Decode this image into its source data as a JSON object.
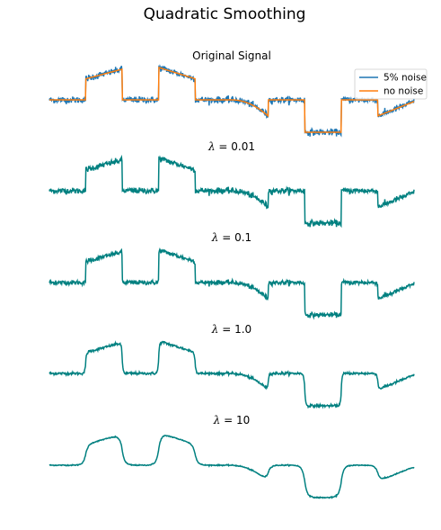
{
  "figure": {
    "title": "Quadratic Smoothing"
  },
  "chart_data": [
    {
      "type": "line",
      "title": "Original Signal",
      "axes_visible": false,
      "legend": {
        "placement": "top-right",
        "entries": [
          "5% noise",
          "no noise"
        ]
      },
      "x_range": [
        0,
        1
      ],
      "y_range": [
        -1.2,
        1.2
      ],
      "piecewise_signal": [
        {
          "x_start": 0.0,
          "x_end": 0.1,
          "kind": "flat",
          "y_start": 0.0,
          "y_end": 0.0
        },
        {
          "x_start": 0.1,
          "x_end": 0.2,
          "kind": "linear",
          "y_start": 0.65,
          "y_end": 0.95
        },
        {
          "x_start": 0.2,
          "x_end": 0.3,
          "kind": "flat",
          "y_start": 0.0,
          "y_end": 0.0
        },
        {
          "x_start": 0.3,
          "x_end": 0.4,
          "kind": "linear",
          "y_start": 1.0,
          "y_end": 0.65
        },
        {
          "x_start": 0.4,
          "x_end": 0.5,
          "kind": "flat",
          "y_start": 0.0,
          "y_end": 0.0
        },
        {
          "x_start": 0.5,
          "x_end": 0.6,
          "kind": "quadratic",
          "y_start": 0.0,
          "y_end": -0.5
        },
        {
          "x_start": 0.6,
          "x_end": 0.7,
          "kind": "flat",
          "y_start": 0.0,
          "y_end": 0.0
        },
        {
          "x_start": 0.7,
          "x_end": 0.8,
          "kind": "flat",
          "y_start": -1.0,
          "y_end": -1.0
        },
        {
          "x_start": 0.8,
          "x_end": 0.9,
          "kind": "flat",
          "y_start": 0.0,
          "y_end": 0.0
        },
        {
          "x_start": 0.9,
          "x_end": 1.0,
          "kind": "linear",
          "y_start": -0.5,
          "y_end": -0.05
        }
      ],
      "series": [
        {
          "name": "5% noise",
          "noise_std": 0.05,
          "color": "#1f77b4"
        },
        {
          "name": "no noise",
          "noise_std": 0.0,
          "color": "#ff7f0e"
        }
      ]
    },
    {
      "type": "line",
      "title": "$\\lambda = 0.01$",
      "title_parts": [
        "λ",
        " = 0.01"
      ],
      "lambda": 0.01,
      "axes_visible": false,
      "color": "#008080",
      "residual_noise": 0.045
    },
    {
      "type": "line",
      "title": "$\\lambda = 0.1$",
      "title_parts": [
        "λ",
        " = 0.1"
      ],
      "lambda": 0.1,
      "axes_visible": false,
      "color": "#008080",
      "residual_noise": 0.035
    },
    {
      "type": "line",
      "title": "$\\lambda = 1.0$",
      "title_parts": [
        "λ",
        " = 1.0"
      ],
      "lambda": 1.0,
      "axes_visible": false,
      "color": "#008080",
      "residual_noise": 0.02
    },
    {
      "type": "line",
      "title": "$\\lambda = 10$",
      "title_parts": [
        "λ",
        " = 10"
      ],
      "lambda": 10,
      "axes_visible": false,
      "color": "#008080",
      "residual_noise": 0.008
    }
  ]
}
